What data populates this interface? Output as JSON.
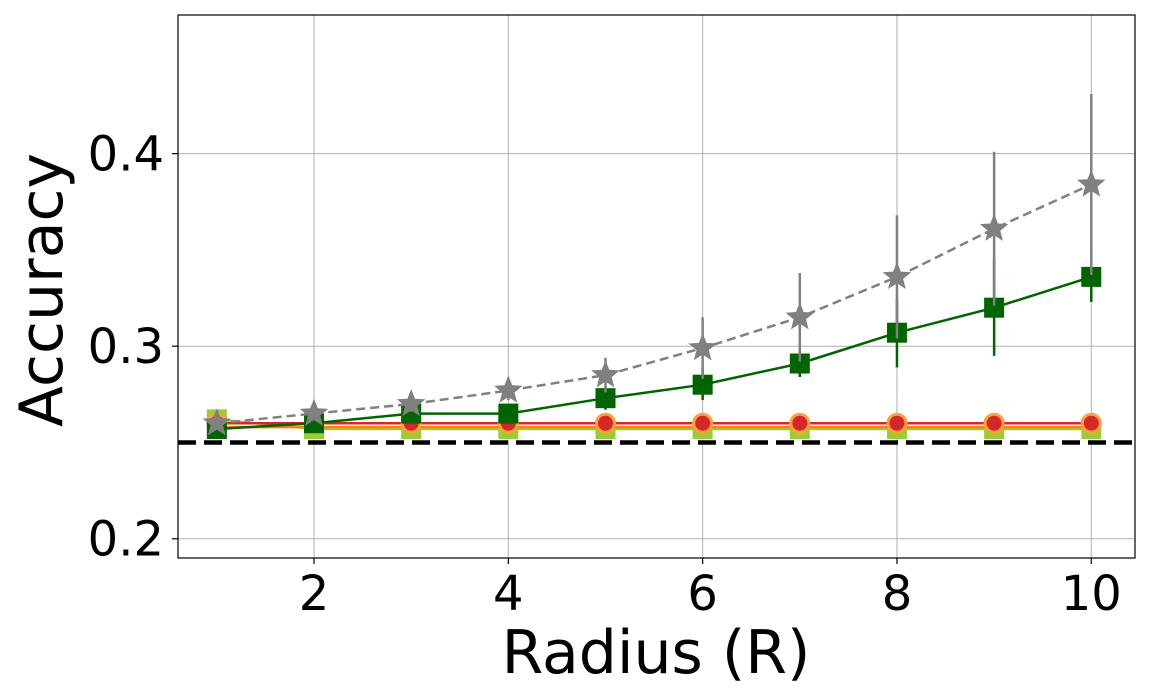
{
  "chart_data": {
    "type": "line",
    "title": "",
    "xlabel": "Radius (R)",
    "ylabel": "Accuracy",
    "xlim": [
      0.6,
      10.45
    ],
    "ylim": [
      0.19,
      0.472
    ],
    "xticks": [
      2,
      4,
      6,
      8,
      10
    ],
    "xtick_labels": [
      "2",
      "4",
      "6",
      "8",
      "10"
    ],
    "yticks": [
      0.2,
      0.3,
      0.4
    ],
    "ytick_labels": [
      "0.2",
      "0.3",
      "0.4"
    ],
    "grid": true,
    "x": [
      1,
      2,
      3,
      4,
      5,
      6,
      7,
      8,
      9,
      10
    ],
    "series": [
      {
        "color": "#808080",
        "line_style": "dashed",
        "marker": "star",
        "values": [
          0.26,
          0.265,
          0.27,
          0.277,
          0.285,
          0.299,
          0.315,
          0.336,
          0.361,
          0.384
        ],
        "errors": [
          0.002,
          0.003,
          0.004,
          0.005,
          0.009,
          0.016,
          0.023,
          0.032,
          0.04,
          0.047
        ]
      },
      {
        "color": "#006400",
        "line_style": "solid",
        "marker": "square",
        "values": [
          0.257,
          0.26,
          0.265,
          0.265,
          0.273,
          0.28,
          0.291,
          0.307,
          0.32,
          0.336
        ],
        "errors": [
          0.001,
          0.002,
          0.003,
          0.003,
          0.006,
          0.008,
          0.007,
          0.018,
          0.025,
          0.013
        ]
      },
      {
        "color": "#d62728",
        "line_style": "solid",
        "marker": "circle",
        "marker_edge": "#ff9f40",
        "values": [
          0.26,
          0.26,
          0.26,
          0.26,
          0.26,
          0.26,
          0.26,
          0.26,
          0.26,
          0.26
        ],
        "errors": []
      },
      {
        "color": "#ff7f0e",
        "line_style": "solid",
        "marker": "none",
        "values": [
          0.258,
          0.258,
          0.258,
          0.258,
          0.258,
          0.258,
          0.258,
          0.258,
          0.258,
          0.258
        ],
        "errors": []
      },
      {
        "color": "#9acd32",
        "line_style": "solid",
        "marker": "square",
        "values": [
          0.262,
          0.257,
          0.257,
          0.257,
          0.257,
          0.257,
          0.257,
          0.257,
          0.257,
          0.257
        ],
        "errors": []
      }
    ],
    "reference_line": {
      "y": 0.25,
      "color": "#000000",
      "line_style": "dashed"
    }
  }
}
